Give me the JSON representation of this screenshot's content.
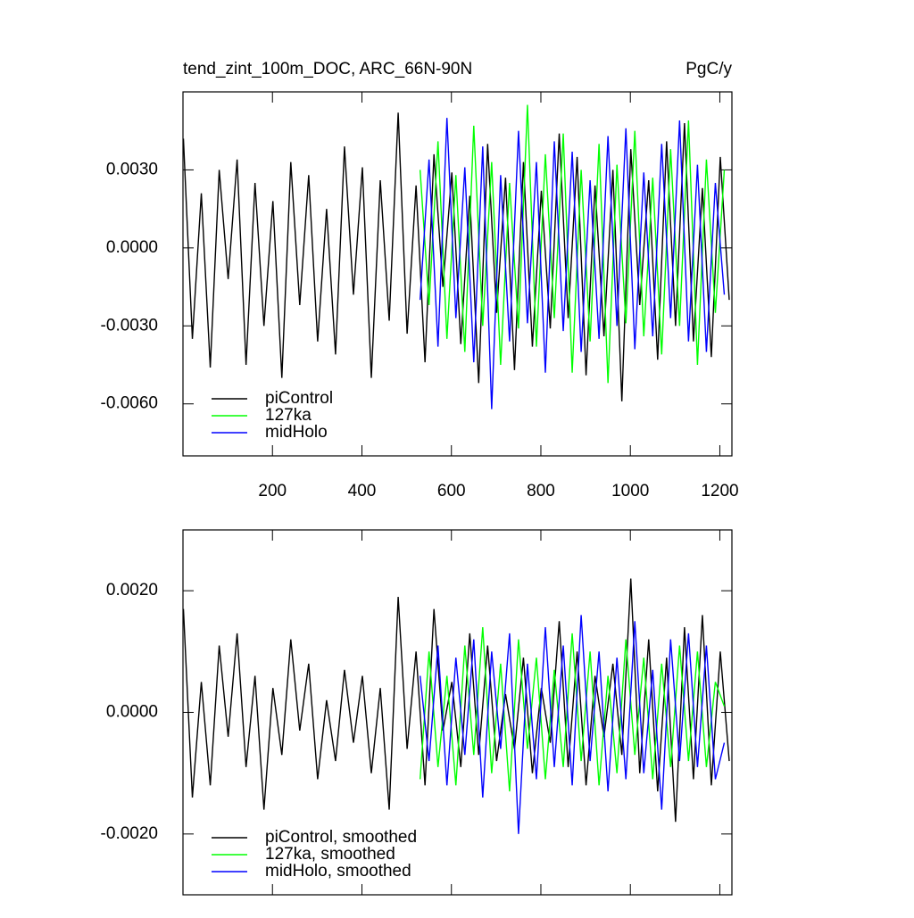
{
  "chart_data": [
    {
      "type": "line",
      "title": "tend_zint_100m_DOC, ARC_66N-90N",
      "units": "PgC/y",
      "xlim": [
        0,
        1227
      ],
      "xticks": [
        200,
        400,
        600,
        800,
        1000,
        1200
      ],
      "ylim": [
        -0.008,
        0.006
      ],
      "yticks": [
        {
          "value": -0.006,
          "label": "-0.0060"
        },
        {
          "value": -0.003,
          "label": "-0.0030"
        },
        {
          "value": 0,
          "label": "0.0000"
        },
        {
          "value": 0.003,
          "label": "0.0030"
        }
      ],
      "legend": "lower left",
      "series": [
        {
          "name": "piControl",
          "color": "#000000",
          "x": [
            1,
            21,
            41,
            61,
            81,
            101,
            121,
            141,
            161,
            181,
            201,
            221,
            241,
            261,
            281,
            301,
            321,
            341,
            361,
            381,
            401,
            421,
            441,
            461,
            481,
            501,
            521,
            541,
            561,
            581,
            601,
            621,
            641,
            661,
            681,
            701,
            721,
            741,
            761,
            781,
            801,
            821,
            841,
            861,
            881,
            901,
            921,
            941,
            961,
            981,
            1001,
            1021,
            1041,
            1061,
            1081,
            1101,
            1121,
            1141,
            1161,
            1181,
            1201,
            1221
          ],
          "values": [
            0.0042,
            -0.0035,
            0.0021,
            -0.0046,
            0.003,
            -0.0012,
            0.0034,
            -0.0045,
            0.0025,
            -0.003,
            0.0018,
            -0.005,
            0.0033,
            -0.0022,
            0.0028,
            -0.0036,
            0.0015,
            -0.0041,
            0.0039,
            -0.0018,
            0.0031,
            -0.005,
            0.0026,
            -0.0028,
            0.0052,
            -0.0033,
            0.0024,
            -0.0044,
            0.0036,
            -0.0015,
            0.0029,
            -0.0037,
            0.002,
            -0.0052,
            0.004,
            -0.0025,
            0.0027,
            -0.0047,
            0.0033,
            -0.0038,
            0.0022,
            -0.0031,
            0.0044,
            -0.0027,
            0.0035,
            -0.0049,
            0.0024,
            -0.0034,
            0.003,
            -0.0059,
            0.0038,
            -0.0022,
            0.0026,
            -0.0043,
            0.0041,
            -0.003,
            0.0048,
            -0.0036,
            0.0023,
            -0.0042,
            0.0035,
            -0.002
          ]
        },
        {
          "name": "127ka",
          "color": "#00ff00",
          "x": [
            530,
            550,
            570,
            590,
            610,
            630,
            650,
            670,
            690,
            710,
            730,
            750,
            770,
            790,
            810,
            830,
            850,
            870,
            890,
            910,
            930,
            950,
            970,
            990,
            1010,
            1030,
            1050,
            1070,
            1090,
            1110,
            1130,
            1150,
            1170,
            1190,
            1210
          ],
          "values": [
            0.003,
            -0.0022,
            0.0041,
            -0.0035,
            0.0028,
            -0.004,
            0.0047,
            -0.003,
            0.0033,
            -0.0045,
            0.0025,
            -0.0031,
            0.0055,
            -0.0038,
            0.0036,
            -0.0027,
            0.0044,
            -0.0048,
            0.003,
            -0.0036,
            0.004,
            -0.0052,
            0.0032,
            -0.0029,
            0.0045,
            -0.0034,
            0.0027,
            -0.0041,
            0.0038,
            -0.003,
            0.0049,
            -0.0045,
            0.0034,
            -0.0025,
            0.003
          ]
        },
        {
          "name": "midHolo",
          "color": "#0000ff",
          "x": [
            530,
            550,
            570,
            590,
            610,
            630,
            650,
            670,
            690,
            710,
            730,
            750,
            770,
            790,
            810,
            830,
            850,
            870,
            890,
            910,
            930,
            950,
            970,
            990,
            1010,
            1030,
            1050,
            1070,
            1090,
            1110,
            1130,
            1150,
            1170,
            1190,
            1210
          ],
          "values": [
            -0.002,
            0.0034,
            -0.0038,
            0.005,
            -0.0027,
            0.0031,
            -0.0044,
            0.0039,
            -0.0062,
            0.0028,
            -0.0036,
            0.0045,
            -0.0029,
            0.0033,
            -0.0048,
            0.0041,
            -0.0032,
            0.0037,
            -0.004,
            0.0026,
            -0.0035,
            0.0043,
            -0.003,
            0.0046,
            -0.0039,
            0.0029,
            -0.0034,
            0.004,
            -0.0027,
            0.0049,
            -0.0036,
            0.0032,
            -0.004,
            0.0025,
            -0.0018
          ]
        }
      ]
    },
    {
      "type": "line",
      "xlim": [
        0,
        1227
      ],
      "ylim": [
        -0.003,
        0.003
      ],
      "yticks": [
        {
          "value": -0.002,
          "label": "-0.0020"
        },
        {
          "value": 0,
          "label": "0.0000"
        },
        {
          "value": 0.002,
          "label": "0.0020"
        }
      ],
      "legend": "lower left",
      "series": [
        {
          "name": "piControl, smoothed",
          "color": "#000000",
          "x": [
            1,
            21,
            41,
            61,
            81,
            101,
            121,
            141,
            161,
            181,
            201,
            221,
            241,
            261,
            281,
            301,
            321,
            341,
            361,
            381,
            401,
            421,
            441,
            461,
            481,
            501,
            521,
            541,
            561,
            581,
            601,
            621,
            641,
            661,
            681,
            701,
            721,
            741,
            761,
            781,
            801,
            821,
            841,
            861,
            881,
            901,
            921,
            941,
            961,
            981,
            1001,
            1021,
            1041,
            1061,
            1081,
            1101,
            1121,
            1141,
            1161,
            1181,
            1201,
            1221
          ],
          "values": [
            0.0017,
            -0.0014,
            0.0005,
            -0.0012,
            0.0011,
            -0.0004,
            0.0013,
            -0.0009,
            0.0006,
            -0.0016,
            0.0004,
            -0.0007,
            0.0012,
            -0.0003,
            0.0008,
            -0.0011,
            0.0002,
            -0.0008,
            0.0007,
            -0.0005,
            0.0006,
            -0.001,
            0.0004,
            -0.0016,
            0.0019,
            -0.0006,
            0.001,
            -0.0012,
            0.0017,
            -0.0003,
            0.0005,
            -0.0009,
            0.0013,
            -0.0007,
            0.0011,
            -0.0008,
            0.0003,
            -0.0006,
            0.0009,
            -0.001,
            0.0004,
            -0.0005,
            0.0015,
            -0.0009,
            0.001,
            -0.0012,
            0.0006,
            -0.0004,
            0.0008,
            -0.0007,
            0.0022,
            -0.001,
            0.0012,
            -0.0013,
            0.0009,
            -0.0018,
            0.0014,
            -0.0011,
            0.0016,
            -0.0012,
            0.001,
            -0.0008
          ]
        },
        {
          "name": "127ka, smoothed",
          "color": "#00ff00",
          "x": [
            530,
            550,
            570,
            590,
            610,
            630,
            650,
            670,
            690,
            710,
            730,
            750,
            770,
            790,
            810,
            830,
            850,
            870,
            890,
            910,
            930,
            950,
            970,
            990,
            1010,
            1030,
            1050,
            1070,
            1090,
            1110,
            1130,
            1150,
            1170,
            1190,
            1210
          ],
          "values": [
            -0.0011,
            0.001,
            -0.0009,
            0.0006,
            -0.0012,
            0.0011,
            -0.0007,
            0.0014,
            -0.001,
            0.0008,
            -0.0013,
            0.0012,
            -0.0006,
            0.0009,
            -0.0011,
            0.0007,
            -0.0009,
            0.0013,
            -0.0008,
            0.001,
            -0.0012,
            0.0006,
            -0.001,
            0.0012,
            -0.0007,
            0.0009,
            -0.0011,
            0.0008,
            -0.0009,
            0.0011,
            -0.0008,
            0.001,
            -0.0009,
            0.0005,
            0.0001
          ]
        },
        {
          "name": "midHolo, smoothed",
          "color": "#0000ff",
          "x": [
            530,
            550,
            570,
            590,
            610,
            630,
            650,
            670,
            690,
            710,
            730,
            750,
            770,
            790,
            810,
            830,
            850,
            870,
            890,
            910,
            930,
            950,
            970,
            990,
            1010,
            1030,
            1050,
            1070,
            1090,
            1110,
            1130,
            1150,
            1170,
            1190,
            1210
          ],
          "values": [
            0.0006,
            -0.0008,
            0.0011,
            -0.0012,
            0.0009,
            -0.0007,
            0.0012,
            -0.0014,
            0.001,
            -0.0006,
            0.0013,
            -0.002,
            0.0008,
            -0.0011,
            0.0014,
            -0.0009,
            0.0011,
            -0.0012,
            0.0016,
            -0.0008,
            0.001,
            -0.0013,
            0.0009,
            -0.0011,
            0.0015,
            -0.001,
            0.0007,
            -0.0016,
            0.0012,
            -0.0008,
            0.0013,
            -0.0009,
            0.0011,
            -0.0011,
            -0.0005
          ]
        }
      ]
    }
  ]
}
